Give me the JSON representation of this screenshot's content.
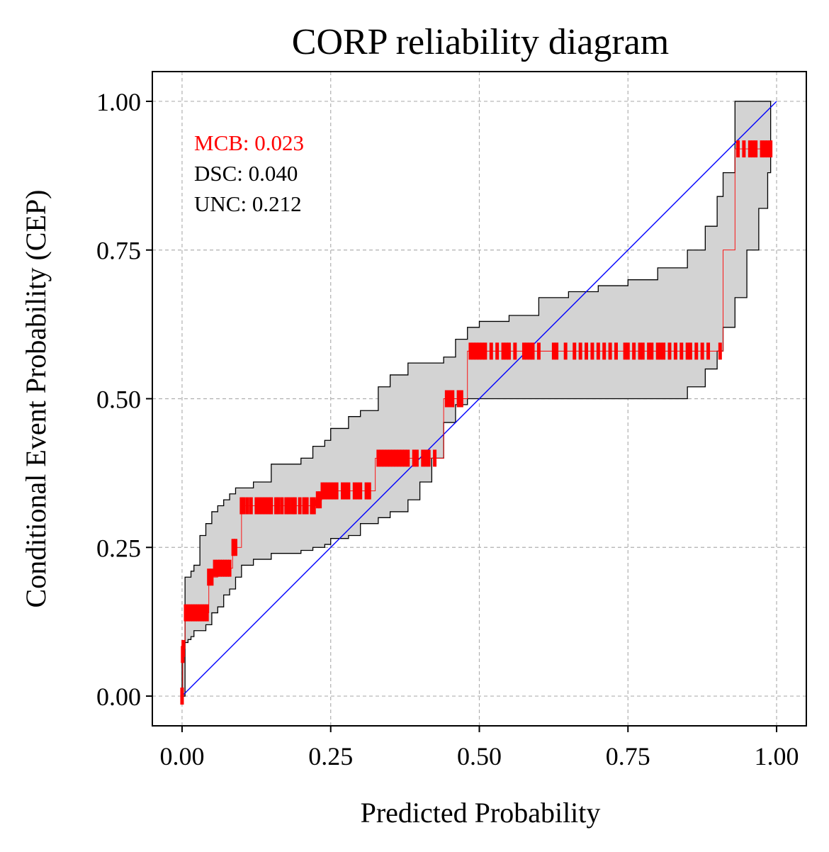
{
  "chart_data": {
    "type": "line",
    "title": "CORP reliability diagram",
    "xlabel": "Predicted Probability",
    "ylabel": "Conditional Event Probability (CEP)",
    "xlim": [
      -0.05,
      1.05
    ],
    "ylim": [
      -0.05,
      1.05
    ],
    "xticks": [
      "0.00",
      "0.25",
      "0.50",
      "0.75",
      "1.00"
    ],
    "yticks": [
      "0.00",
      "0.25",
      "0.50",
      "0.75",
      "1.00"
    ],
    "grid": true,
    "annotations": [
      {
        "label": "MCB: 0.023",
        "color": "#ff0000"
      },
      {
        "label": "DSC: 0.040",
        "color": "#000000"
      },
      {
        "label": "UNC: 0.212",
        "color": "#000000"
      }
    ],
    "colors": {
      "cep": "#ff0000",
      "diagonal": "#0000ff",
      "band_fill": "#d3d3d3",
      "band_edge": "#000000"
    },
    "series": [
      {
        "type": "step",
        "color": "#ff0000",
        "x": [
          0.0,
          0.001,
          0.005,
          0.045,
          0.06,
          0.085,
          0.1,
          0.225,
          0.235,
          0.325,
          0.44,
          0.48,
          0.91,
          0.93,
          0.99
        ],
        "y": [
          0.0,
          0.08,
          0.14,
          0.2,
          0.215,
          0.25,
          0.32,
          0.33,
          0.345,
          0.4,
          0.5,
          0.58,
          0.75,
          0.92,
          0.92
        ]
      },
      {
        "type": "scatter",
        "color": "#ff0000",
        "x": [
          0.0,
          0.001,
          0.002,
          0.006,
          0.01,
          0.014,
          0.018,
          0.022,
          0.026,
          0.03,
          0.034,
          0.038,
          0.042,
          0.045,
          0.05,
          0.055,
          0.06,
          0.064,
          0.068,
          0.072,
          0.076,
          0.08,
          0.086,
          0.09,
          0.1,
          0.104,
          0.11,
          0.116,
          0.125,
          0.13,
          0.135,
          0.14,
          0.145,
          0.15,
          0.158,
          0.162,
          0.168,
          0.175,
          0.18,
          0.186,
          0.19,
          0.198,
          0.205,
          0.21,
          0.218,
          0.222,
          0.228,
          0.232,
          0.236,
          0.24,
          0.245,
          0.25,
          0.255,
          0.26,
          0.27,
          0.275,
          0.28,
          0.29,
          0.295,
          0.3,
          0.31,
          0.315,
          0.33,
          0.335,
          0.34,
          0.345,
          0.35,
          0.355,
          0.36,
          0.365,
          0.37,
          0.375,
          0.38,
          0.39,
          0.395,
          0.405,
          0.41,
          0.415,
          0.425,
          0.445,
          0.45,
          0.455,
          0.465,
          0.47,
          0.485,
          0.49,
          0.495,
          0.5,
          0.505,
          0.51,
          0.52,
          0.53,
          0.54,
          0.545,
          0.55,
          0.56,
          0.575,
          0.58,
          0.585,
          0.59,
          0.6,
          0.625,
          0.63,
          0.645,
          0.66,
          0.67,
          0.68,
          0.69,
          0.7,
          0.71,
          0.72,
          0.73,
          0.745,
          0.75,
          0.76,
          0.77,
          0.775,
          0.785,
          0.79,
          0.8,
          0.805,
          0.81,
          0.82,
          0.83,
          0.84,
          0.85,
          0.855,
          0.865,
          0.875,
          0.885,
          0.905,
          0.935,
          0.945,
          0.955,
          0.96,
          0.965,
          0.975,
          0.98,
          0.985,
          0.99
        ],
        "y": [
          0.0,
          0.07,
          0.08,
          0.14,
          0.14,
          0.14,
          0.14,
          0.14,
          0.14,
          0.14,
          0.14,
          0.14,
          0.14,
          0.2,
          0.2,
          0.215,
          0.215,
          0.215,
          0.215,
          0.215,
          0.215,
          0.215,
          0.25,
          0.25,
          0.32,
          0.32,
          0.32,
          0.32,
          0.32,
          0.32,
          0.32,
          0.32,
          0.32,
          0.32,
          0.32,
          0.32,
          0.32,
          0.32,
          0.32,
          0.32,
          0.32,
          0.32,
          0.32,
          0.32,
          0.32,
          0.32,
          0.33,
          0.33,
          0.345,
          0.345,
          0.345,
          0.345,
          0.345,
          0.345,
          0.345,
          0.345,
          0.345,
          0.345,
          0.345,
          0.345,
          0.345,
          0.345,
          0.4,
          0.4,
          0.4,
          0.4,
          0.4,
          0.4,
          0.4,
          0.4,
          0.4,
          0.4,
          0.4,
          0.4,
          0.4,
          0.4,
          0.4,
          0.4,
          0.4,
          0.5,
          0.5,
          0.5,
          0.5,
          0.5,
          0.58,
          0.58,
          0.58,
          0.58,
          0.58,
          0.58,
          0.58,
          0.58,
          0.58,
          0.58,
          0.58,
          0.58,
          0.58,
          0.58,
          0.58,
          0.58,
          0.58,
          0.58,
          0.58,
          0.58,
          0.58,
          0.58,
          0.58,
          0.58,
          0.58,
          0.58,
          0.58,
          0.58,
          0.58,
          0.58,
          0.58,
          0.58,
          0.58,
          0.58,
          0.58,
          0.58,
          0.58,
          0.58,
          0.58,
          0.58,
          0.58,
          0.58,
          0.58,
          0.58,
          0.58,
          0.58,
          0.58,
          0.92,
          0.92,
          0.92,
          0.92,
          0.92,
          0.92,
          0.92,
          0.92,
          0.92
        ]
      },
      {
        "type": "line",
        "color": "#0000ff",
        "x": [
          0.0,
          1.0
        ],
        "y": [
          0.0,
          1.0
        ]
      },
      {
        "type": "band",
        "x": [
          0.0,
          0.005,
          0.01,
          0.015,
          0.02,
          0.03,
          0.04,
          0.05,
          0.06,
          0.07,
          0.08,
          0.09,
          0.1,
          0.12,
          0.15,
          0.2,
          0.22,
          0.24,
          0.25,
          0.28,
          0.3,
          0.33,
          0.35,
          0.38,
          0.4,
          0.42,
          0.44,
          0.46,
          0.48,
          0.5,
          0.55,
          0.6,
          0.65,
          0.7,
          0.75,
          0.8,
          0.85,
          0.88,
          0.9,
          0.91,
          0.93,
          0.95,
          0.97,
          0.985,
          0.99
        ],
        "lower": [
          0.0,
          0.08,
          0.09,
          0.095,
          0.1,
          0.11,
          0.11,
          0.12,
          0.14,
          0.15,
          0.17,
          0.18,
          0.2,
          0.22,
          0.23,
          0.24,
          0.245,
          0.25,
          0.255,
          0.265,
          0.27,
          0.29,
          0.3,
          0.31,
          0.33,
          0.36,
          0.4,
          0.46,
          0.49,
          0.5,
          0.5,
          0.5,
          0.5,
          0.5,
          0.5,
          0.5,
          0.5,
          0.52,
          0.55,
          0.58,
          0.62,
          0.67,
          0.75,
          0.82,
          0.88
        ],
        "upper": [
          0.0,
          0.2,
          0.2,
          0.21,
          0.22,
          0.27,
          0.29,
          0.31,
          0.32,
          0.33,
          0.34,
          0.35,
          0.35,
          0.36,
          0.39,
          0.4,
          0.42,
          0.43,
          0.45,
          0.47,
          0.48,
          0.52,
          0.54,
          0.56,
          0.56,
          0.56,
          0.57,
          0.6,
          0.62,
          0.63,
          0.64,
          0.67,
          0.68,
          0.69,
          0.7,
          0.72,
          0.75,
          0.79,
          0.84,
          0.88,
          1.0,
          1.0,
          1.0,
          1.0,
          1.0
        ]
      }
    ]
  }
}
